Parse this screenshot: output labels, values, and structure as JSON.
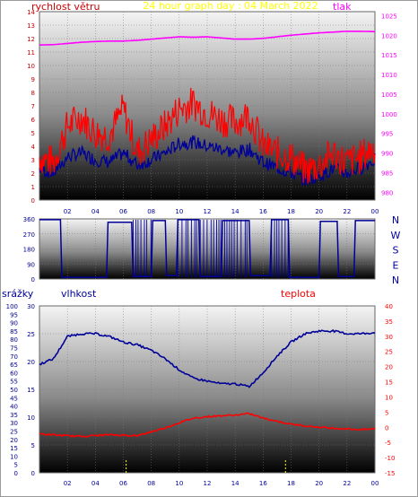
{
  "title": "24 hour graph day : 04 March 2022",
  "x_ticks": [
    "02",
    "04",
    "06",
    "08",
    "10",
    "12",
    "14",
    "16",
    "18",
    "20",
    "22",
    "00"
  ],
  "colors": {
    "wind": "#ff0000",
    "wind_dir": "#000099",
    "pressure": "#ff00ff",
    "humidity": "#000099",
    "temperature": "#ff0000",
    "rain": "#ffff00",
    "title": "#ffff00"
  },
  "chart_data": [
    {
      "type": "line",
      "name": "wind-pressure",
      "labels": {
        "left": "rychlost větru",
        "right": "tlak"
      },
      "left_axis": {
        "ticks": [
          "0",
          "1",
          "2",
          "3",
          "4",
          "5",
          "6",
          "7",
          "8",
          "9",
          "10",
          "11",
          "12",
          "13",
          "14"
        ],
        "ylim": [
          0,
          14
        ]
      },
      "right_axis": {
        "ticks": [
          "980",
          "985",
          "990",
          "995",
          "1000",
          "1005",
          "1010",
          "1015",
          "1020",
          "1025"
        ],
        "ylim": [
          978,
          1026
        ]
      },
      "x": [
        0,
        1,
        2,
        3,
        4,
        5,
        6,
        7,
        8,
        9,
        10,
        11,
        12,
        13,
        14,
        15,
        16,
        17,
        18,
        19,
        20,
        21,
        22,
        23,
        24
      ],
      "series": [
        {
          "name": "rychlost větru",
          "axis": "left",
          "values": [
            3.2,
            2.8,
            5.5,
            6.2,
            5.0,
            4.8,
            6.8,
            3.5,
            4.5,
            5.5,
            6.8,
            7.2,
            6.5,
            6.0,
            5.8,
            6.4,
            4.0,
            3.5,
            3.2,
            2.2,
            2.6,
            3.5,
            2.8,
            3.2,
            4.0
          ]
        },
        {
          "axis": "left",
          "values": [
            2.3,
            2.0,
            3.2,
            3.5,
            3.0,
            2.8,
            3.5,
            2.6,
            3.0,
            3.5,
            4.2,
            4.3,
            4.0,
            3.8,
            3.5,
            3.8,
            2.8,
            2.4,
            2.0,
            1.5,
            1.8,
            2.3,
            2.0,
            2.4,
            3.0
          ]
        },
        {
          "name": "tlak",
          "axis": "right",
          "values": [
            1017.5,
            1017.6,
            1017.9,
            1018.2,
            1018.4,
            1018.5,
            1018.5,
            1018.7,
            1019.0,
            1019.3,
            1019.6,
            1019.5,
            1019.6,
            1019.3,
            1019.0,
            1019.0,
            1019.2,
            1019.6,
            1020.0,
            1020.3,
            1020.6,
            1020.8,
            1021.0,
            1021.0,
            1020.9
          ]
        }
      ]
    },
    {
      "type": "line",
      "name": "wind-direction",
      "axis": {
        "ticks": [
          "0",
          "90",
          "180",
          "270",
          "360"
        ],
        "ylim": [
          0,
          360
        ]
      },
      "compass": [
        "N",
        "W",
        "S",
        "E",
        "N"
      ],
      "x": [
        0,
        1.5,
        1.6,
        4.8,
        4.9,
        6.6,
        6.7,
        8.0,
        8.1,
        9.0,
        9.1,
        9.8,
        9.9,
        11.4,
        11.5,
        13.0,
        13.1,
        15.0,
        15.1,
        16.5,
        16.6,
        17.8,
        17.9,
        20.0,
        20.1,
        21.3,
        21.4,
        22.5,
        22.6,
        24
      ],
      "values": [
        355,
        355,
        10,
        10,
        340,
        340,
        15,
        15,
        350,
        350,
        20,
        20,
        355,
        355,
        15,
        15,
        350,
        350,
        20,
        20,
        355,
        355,
        10,
        10,
        345,
        345,
        15,
        15,
        350,
        350
      ]
    },
    {
      "type": "line",
      "name": "humidity-temperature-rain",
      "labels": {
        "left": "srážky",
        "middle": "vlhkost",
        "right": "teplota"
      },
      "rain_axis": {
        "ticks": [
          "0",
          "5",
          "10",
          "15",
          "20",
          "25",
          "30",
          "35",
          "40",
          "45",
          "50",
          "55",
          "60",
          "65",
          "70",
          "75",
          "80",
          "85",
          "90",
          "95",
          "100"
        ],
        "ylim": [
          0,
          100
        ]
      },
      "humidity_axis": {
        "ticks": [
          "0",
          "5",
          "10",
          "15",
          "20",
          "25",
          "30"
        ],
        "ylim": [
          0,
          30
        ]
      },
      "temperature_axis": {
        "ticks": [
          "-15",
          "-10",
          "-5",
          "0",
          "5",
          "10",
          "15",
          "20",
          "25",
          "30",
          "35",
          "40"
        ],
        "ylim": [
          -15,
          40
        ]
      },
      "x": [
        0,
        1,
        2,
        3,
        4,
        5,
        6,
        7,
        8,
        9,
        10,
        11,
        12,
        13,
        14,
        15,
        16,
        17,
        18,
        19,
        20,
        21,
        22,
        23,
        24
      ],
      "series": [
        {
          "name": "vlhkost",
          "axis": "humidity",
          "values": [
            19.5,
            20.5,
            24.5,
            25.0,
            25.0,
            24.5,
            23.5,
            23.0,
            22.0,
            20.5,
            18.5,
            17.0,
            16.5,
            16.0,
            16.0,
            15.5,
            18.0,
            21.0,
            23.5,
            25.0,
            25.5,
            25.5,
            25.0,
            25.0,
            25.2
          ]
        },
        {
          "name": "teplota",
          "axis": "temperature",
          "values": [
            -2.2,
            -2.5,
            -2.8,
            -3.0,
            -2.7,
            -2.5,
            -2.6,
            -2.8,
            -1.5,
            -0.2,
            1.5,
            3.0,
            3.5,
            3.8,
            4.0,
            4.5,
            3.0,
            2.0,
            1.0,
            0.5,
            0.0,
            -0.3,
            -0.5,
            -0.8,
            -0.5
          ]
        },
        {
          "name": "srážky",
          "axis": "rain",
          "type": "bar",
          "x": [
            6.2,
            17.6
          ],
          "values": [
            8,
            8
          ]
        }
      ]
    }
  ]
}
